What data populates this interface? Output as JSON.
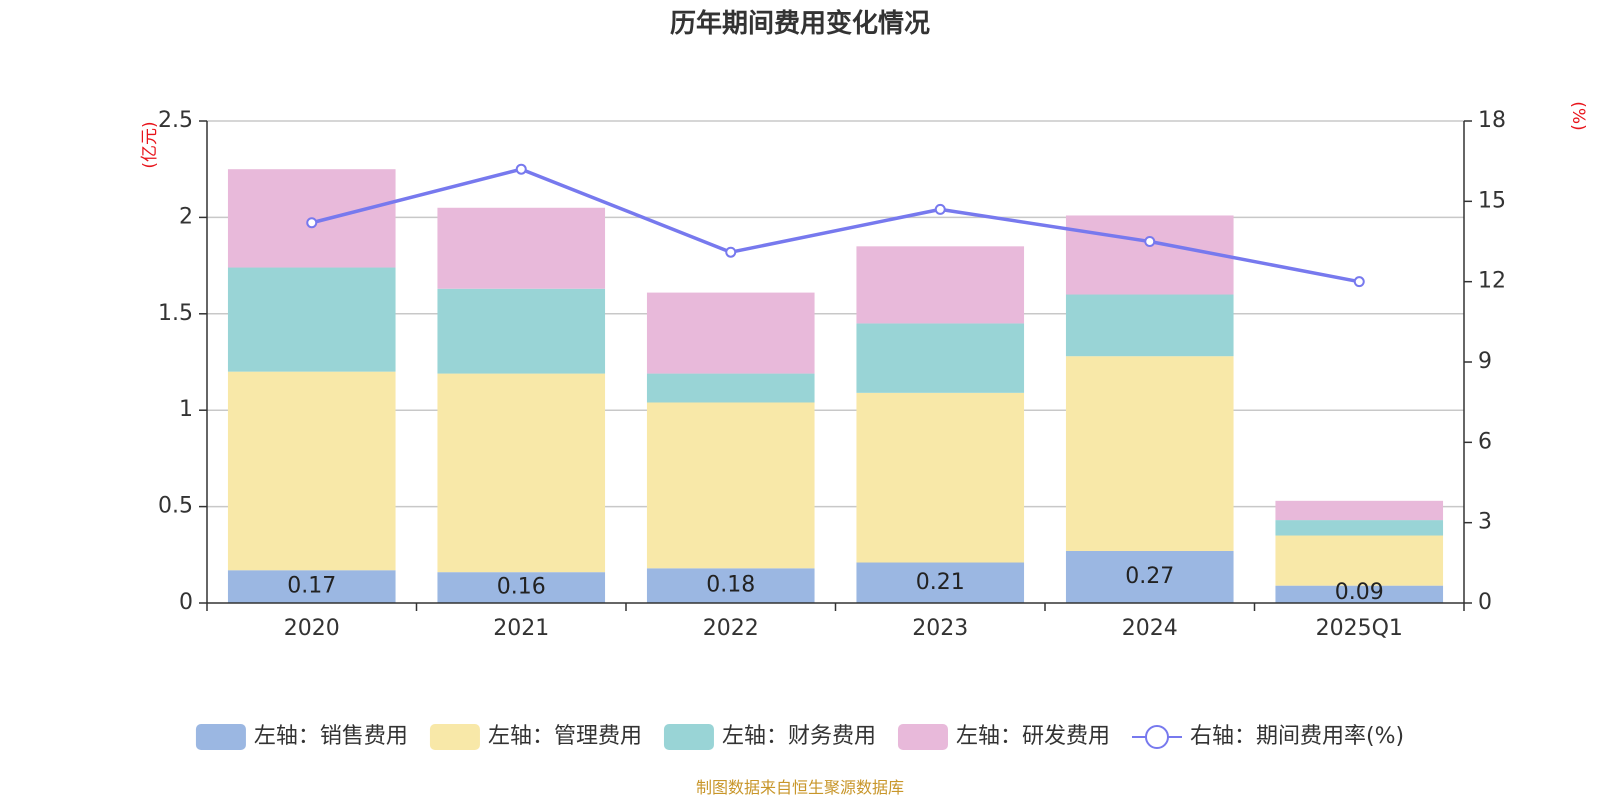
{
  "chart_data": {
    "type": "bar",
    "title": "历年期间费用变化情况",
    "categories": [
      "2020",
      "2021",
      "2022",
      "2023",
      "2024",
      "2025Q1"
    ],
    "left_axis": {
      "unit": "(亿元)",
      "ylim": [
        0,
        2.5
      ],
      "ticks": [
        0,
        0.5,
        1,
        1.5,
        2,
        2.5
      ],
      "tick_labels": [
        "0",
        "0.5",
        "1",
        "1.5",
        "2",
        "2.5"
      ]
    },
    "right_axis": {
      "unit": "(%)",
      "ylim": [
        0,
        18
      ],
      "ticks": [
        0,
        3,
        6,
        9,
        12,
        15,
        18
      ],
      "tick_labels": [
        "0",
        "3",
        "6",
        "9",
        "12",
        "15",
        "18"
      ]
    },
    "grid": true,
    "stacked": true,
    "series": [
      {
        "name": "左轴：销售费用",
        "axis": "left",
        "kind": "bar",
        "color": "#9bb7e2",
        "values": [
          0.17,
          0.16,
          0.18,
          0.21,
          0.27,
          0.09
        ],
        "data_labels": [
          "0.17",
          "0.16",
          "0.18",
          "0.21",
          "0.27",
          "0.09"
        ]
      },
      {
        "name": "左轴：管理费用",
        "axis": "left",
        "kind": "bar",
        "color": "#f8e8a8",
        "values": [
          1.03,
          1.03,
          0.86,
          0.88,
          1.01,
          0.26
        ]
      },
      {
        "name": "左轴：财务费用",
        "axis": "left",
        "kind": "bar",
        "color": "#99d4d6",
        "values": [
          0.54,
          0.44,
          0.15,
          0.36,
          0.32,
          0.08
        ]
      },
      {
        "name": "左轴：研发费用",
        "axis": "left",
        "kind": "bar",
        "color": "#e8b9da",
        "values": [
          0.51,
          0.42,
          0.42,
          0.4,
          0.41,
          0.1
        ]
      },
      {
        "name": "右轴：期间费用率(%)",
        "axis": "right",
        "kind": "line",
        "color": "#7779ee",
        "values": [
          14.2,
          16.2,
          13.1,
          14.7,
          13.5,
          12.0
        ]
      }
    ],
    "legend_position": "bottom"
  },
  "source_note": "制图数据来自恒生聚源数据库"
}
